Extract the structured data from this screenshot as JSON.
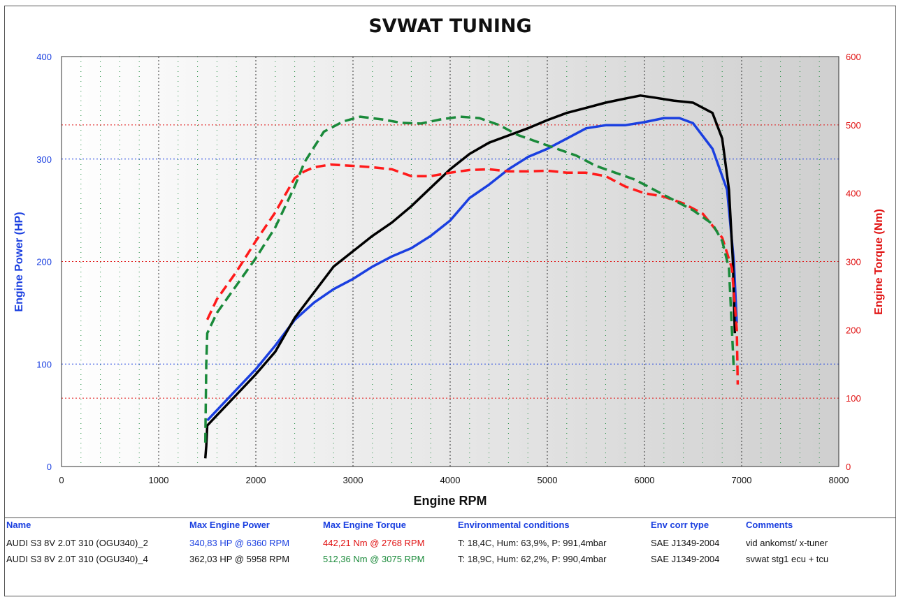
{
  "chart_data": {
    "type": "line",
    "title": "SVWAT TUNING",
    "xlabel": "Engine RPM",
    "ylabel_left": "Engine Power (HP)",
    "ylabel_right": "Engine Torque (Nm)",
    "xlim": [
      0,
      8000
    ],
    "ylim_left": [
      0,
      400
    ],
    "ylim_right": [
      0,
      600
    ],
    "x_ticks": [
      0,
      1000,
      2000,
      3000,
      4000,
      5000,
      6000,
      7000,
      8000
    ],
    "y_left_ticks": [
      0,
      100,
      200,
      300,
      400
    ],
    "y_right_ticks": [
      0,
      100,
      200,
      300,
      400,
      500,
      600
    ],
    "grid": true,
    "colors": {
      "power_run2": "#1a3fe0",
      "power_run4": "#000000",
      "torque_run2": "#ff1a1a",
      "torque_run4": "#1a8a3a",
      "left_axis": "#1a3fe0",
      "right_axis": "#e01010"
    },
    "series": [
      {
        "axis": "left",
        "dash": false,
        "color_key": "power_run2",
        "x": [
          1500,
          1600,
          1800,
          2000,
          2200,
          2400,
          2600,
          2800,
          3000,
          3200,
          3400,
          3600,
          3800,
          4000,
          4200,
          4400,
          4600,
          4800,
          5000,
          5200,
          5400,
          5600,
          5800,
          6000,
          6200,
          6360,
          6500,
          6700,
          6850,
          6920,
          6950
        ],
        "y": [
          45,
          55,
          75,
          95,
          118,
          143,
          160,
          173,
          183,
          195,
          205,
          213,
          225,
          240,
          262,
          275,
          290,
          302,
          310,
          320,
          330,
          333,
          333,
          336,
          340,
          340,
          335,
          310,
          270,
          200,
          140
        ]
      },
      {
        "axis": "left",
        "dash": false,
        "color_key": "power_run4",
        "x": [
          1480,
          1490,
          1500,
          1600,
          1800,
          2000,
          2200,
          2400,
          2600,
          2800,
          3000,
          3200,
          3400,
          3600,
          3800,
          4000,
          4200,
          4400,
          4600,
          4800,
          5000,
          5200,
          5400,
          5600,
          5800,
          5958,
          6100,
          6300,
          6500,
          6700,
          6800,
          6870,
          6910,
          6930
        ],
        "y": [
          8,
          20,
          40,
          50,
          70,
          90,
          112,
          145,
          170,
          195,
          210,
          225,
          238,
          254,
          272,
          290,
          305,
          316,
          323,
          330,
          338,
          345,
          350,
          355,
          359,
          362,
          360,
          357,
          355,
          345,
          320,
          270,
          200,
          130
        ]
      },
      {
        "axis": "right",
        "dash": true,
        "color_key": "torque_run2",
        "x": [
          1500,
          1600,
          1800,
          2000,
          2200,
          2400,
          2500,
          2600,
          2768,
          3000,
          3200,
          3400,
          3600,
          3800,
          4000,
          4200,
          4400,
          4600,
          4800,
          5000,
          5200,
          5400,
          5600,
          5800,
          6000,
          6200,
          6400,
          6600,
          6800,
          6900,
          6950,
          6960
        ],
        "y": [
          215,
          245,
          285,
          330,
          372,
          422,
          432,
          438,
          442,
          440,
          438,
          435,
          425,
          425,
          430,
          434,
          435,
          432,
          432,
          433,
          430,
          430,
          425,
          410,
          400,
          395,
          385,
          370,
          335,
          290,
          200,
          120
        ]
      },
      {
        "axis": "right",
        "dash": true,
        "color_key": "torque_run4",
        "x": [
          1480,
          1490,
          1500,
          1600,
          1800,
          2000,
          2200,
          2400,
          2500,
          2700,
          2900,
          3075,
          3300,
          3500,
          3700,
          3900,
          4100,
          4300,
          4500,
          4700,
          4900,
          5100,
          5300,
          5500,
          5700,
          5900,
          6100,
          6300,
          6500,
          6700,
          6800,
          6870,
          6900,
          6920
        ],
        "y": [
          35,
          150,
          195,
          225,
          265,
          305,
          350,
          410,
          445,
          490,
          505,
          512,
          508,
          503,
          502,
          508,
          512,
          510,
          500,
          485,
          475,
          465,
          455,
          440,
          430,
          420,
          405,
          390,
          375,
          355,
          330,
          290,
          200,
          140
        ]
      }
    ],
    "annotations": []
  },
  "table": {
    "headers": {
      "name": "Name",
      "max_power": "Max Engine Power",
      "max_torque": "Max Engine Torque",
      "env": "Environmental conditions",
      "corr": "Env corr type",
      "comments": "Comments"
    },
    "rows": [
      {
        "name": "AUDI S3 8V 2.0T 310 (OGU340)_2",
        "max_power": "340,83 HP @ 6360 RPM",
        "max_torque": "442,21 Nm @ 2768 RPM",
        "env": "T: 18,4C, Hum: 63,9%, P: 991,4mbar",
        "corr": "SAE J1349-2004",
        "comments": "vid ankomst/ x-tuner"
      },
      {
        "name": "AUDI S3 8V 2.0T 310 (OGU340)_4",
        "max_power": "362,03 HP @ 5958 RPM",
        "max_torque": "512,36 Nm @ 3075 RPM",
        "env": "T: 18,9C, Hum: 62,2%, P: 990,4mbar",
        "corr": "SAE J1349-2004",
        "comments": "svwat stg1 ecu + tcu"
      }
    ]
  }
}
